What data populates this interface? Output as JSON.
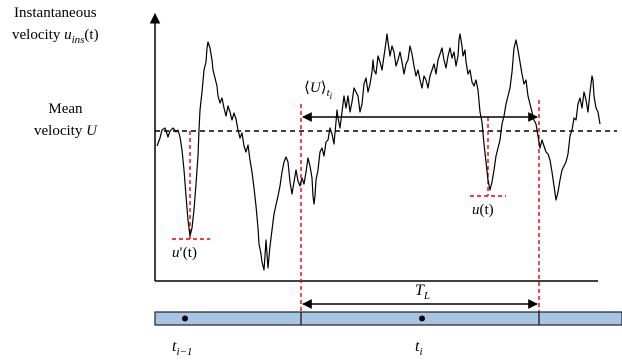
{
  "labels": {
    "instantaneous_line1": "Instantaneous",
    "instantaneous_line2_pre": "velocity ",
    "instantaneous_u": "u",
    "instantaneous_sub": "ins",
    "instantaneous_t": "(t)",
    "mean_line1": "Mean",
    "mean_line2_pre": "velocity ",
    "mean_U": "U",
    "local_mean_open": "⟨",
    "local_mean_U": "U",
    "local_mean_close": "⟩",
    "local_mean_sub": "t",
    "local_mean_subsub": "i",
    "u_prime_u": "u",
    "u_prime_mark": "′",
    "u_prime_t": "(t)",
    "u_t_u": "u",
    "u_t_t": "(t)",
    "TL_T": "T",
    "TL_sub": "L",
    "t_prev": "t",
    "t_prev_sub": "i−1",
    "t_cur": "t",
    "t_cur_sub": "i"
  },
  "colors": {
    "signal": "#000000",
    "marker": "#e8000b",
    "band_fill": "#a8c4e4",
    "band_border": "#222222"
  }
}
